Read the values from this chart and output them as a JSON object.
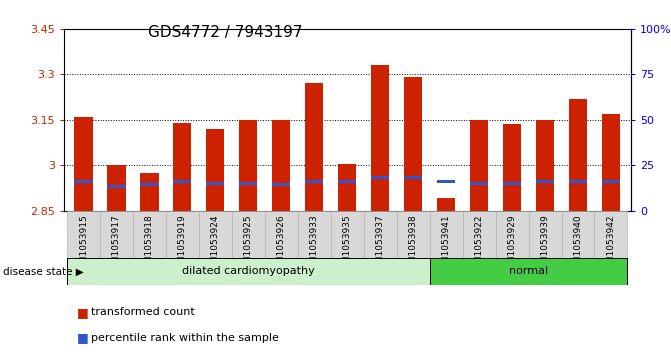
{
  "title": "GDS4772 / 7943197",
  "samples": [
    "GSM1053915",
    "GSM1053917",
    "GSM1053918",
    "GSM1053919",
    "GSM1053924",
    "GSM1053925",
    "GSM1053926",
    "GSM1053933",
    "GSM1053935",
    "GSM1053937",
    "GSM1053938",
    "GSM1053941",
    "GSM1053922",
    "GSM1053929",
    "GSM1053939",
    "GSM1053940",
    "GSM1053942"
  ],
  "bar_heights": [
    3.16,
    3.0,
    2.975,
    3.14,
    3.12,
    3.15,
    3.148,
    3.27,
    3.005,
    3.33,
    3.29,
    2.89,
    3.15,
    3.135,
    3.15,
    3.22,
    3.17
  ],
  "blue_positions": [
    2.945,
    2.93,
    2.935,
    2.945,
    2.94,
    2.94,
    2.935,
    2.945,
    2.945,
    2.96,
    2.96,
    2.945,
    2.94,
    2.94,
    2.945,
    2.945,
    2.945
  ],
  "group_labels": [
    "dilated cardiomyopathy",
    "normal"
  ],
  "group_counts": [
    11,
    6
  ],
  "group_colors_light": [
    "#d4f5d4",
    "#66dd66"
  ],
  "ylim_left": [
    2.85,
    3.45
  ],
  "yticks_left": [
    2.85,
    3.0,
    3.15,
    3.3,
    3.45
  ],
  "ytick_labels_left": [
    "2.85",
    "3",
    "3.15",
    "3.3",
    "3.45"
  ],
  "yticks_right": [
    0,
    25,
    50,
    75,
    100
  ],
  "ytick_labels_right": [
    "0",
    "25",
    "50",
    "75",
    "100%"
  ],
  "bar_color": "#cc2200",
  "blue_color": "#3355cc",
  "bar_width": 0.55,
  "title_fontsize": 11,
  "tick_fontsize": 8,
  "grid_dotted_at": [
    3.0,
    3.15,
    3.3
  ]
}
